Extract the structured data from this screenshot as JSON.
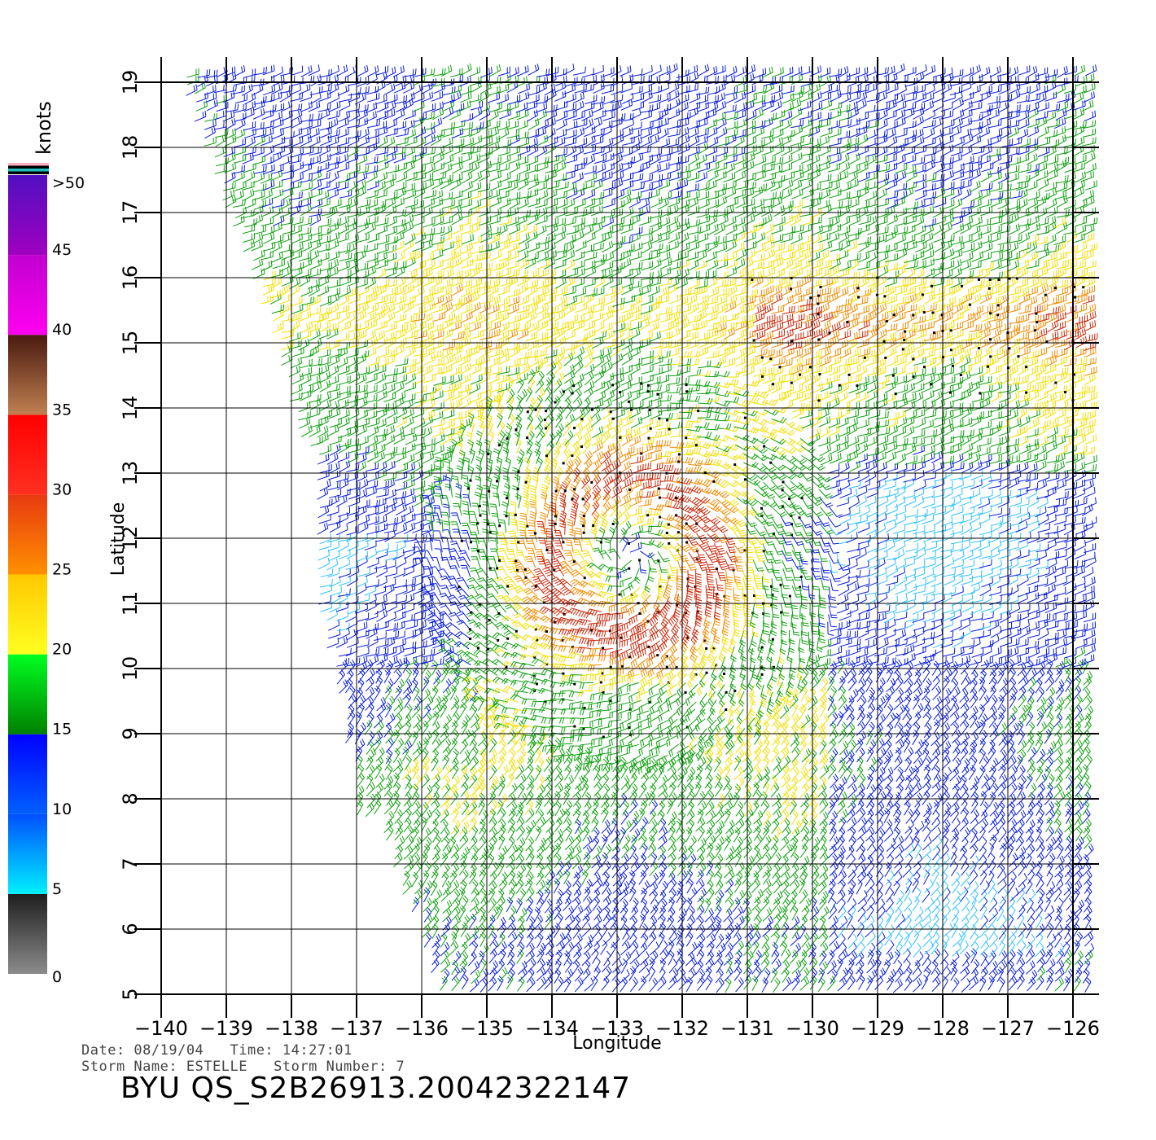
{
  "colorbar": {
    "unit_label": "knots",
    "tick_labels": [
      "0",
      "5",
      "10",
      "15",
      "20",
      "25",
      "30",
      "35",
      "40",
      "45",
      ">50"
    ],
    "bands": [
      {
        "from": 0,
        "to": 5,
        "colors": [
          "#8c8c8c",
          "#1e1e1e"
        ]
      },
      {
        "from": 5,
        "to": 10,
        "colors": [
          "#00f0ff",
          "#0050ff"
        ]
      },
      {
        "from": 10,
        "to": 15,
        "colors": [
          "#0060ff",
          "#0000ff"
        ]
      },
      {
        "from": 15,
        "to": 20,
        "colors": [
          "#008000",
          "#00ff20"
        ]
      },
      {
        "from": 20,
        "to": 25,
        "colors": [
          "#ffff20",
          "#ffc800"
        ]
      },
      {
        "from": 25,
        "to": 30,
        "colors": [
          "#ff9000",
          "#e83a10"
        ]
      },
      {
        "from": 30,
        "to": 35,
        "colors": [
          "#ff3020",
          "#ff0000"
        ]
      },
      {
        "from": 35,
        "to": 40,
        "colors": [
          "#c08050",
          "#4a1a10"
        ]
      },
      {
        "from": 40,
        "to": 45,
        "colors": [
          "#ff00f0",
          "#c000d0"
        ]
      },
      {
        "from": 45,
        "to": 50,
        "colors": [
          "#a000c0",
          "#5010c0"
        ]
      }
    ],
    "top_stripes": [
      "#ffb0c0",
      "#000000",
      "#20c0c0",
      "#000000"
    ]
  },
  "axes": {
    "xlabel": "Longitude",
    "ylabel": "Latitude",
    "lon_ticks": [
      "−140",
      "−139",
      "−138",
      "−137",
      "−136",
      "−135",
      "−134",
      "−133",
      "−132",
      "−131",
      "−130",
      "−129",
      "−128",
      "−127",
      "−126"
    ],
    "lat_ticks": [
      "5",
      "6",
      "7",
      "8",
      "9",
      "10",
      "11",
      "12",
      "13",
      "14",
      "15",
      "16",
      "17",
      "18",
      "19"
    ],
    "lon_range": [
      -140,
      -126
    ],
    "lat_range": [
      5,
      19
    ]
  },
  "wind_field": {
    "center_lon": -132.8,
    "center_lat": 11.7,
    "swath_note": "scatterometer wind barbs colored by speed (knots)"
  },
  "footer": {
    "date_line": "Date: 08/19/04   Time: 14:27:01",
    "storm_line": "Storm Name: ESTELLE   Storm Number: 7",
    "product_id": "BYU QS_S2B26913.20042322147"
  }
}
